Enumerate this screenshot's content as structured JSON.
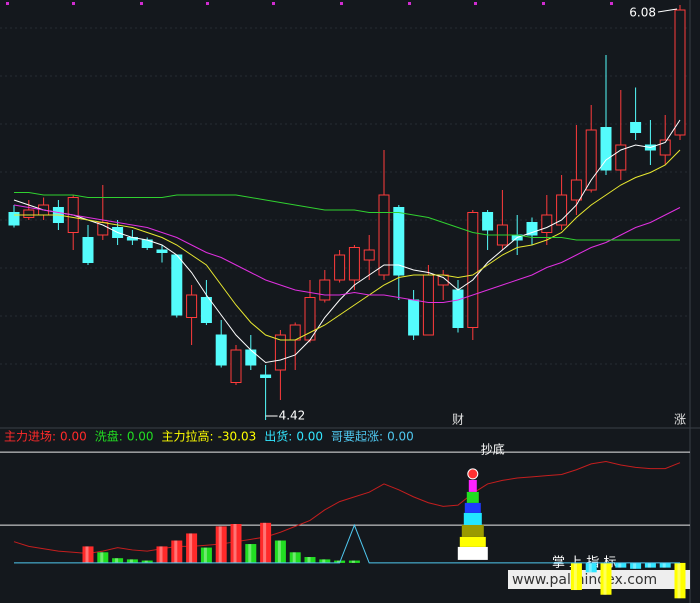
{
  "chart_data": [
    {
      "type": "candlestick",
      "categories": [
        null,
        null,
        null,
        null,
        null,
        null,
        null,
        null,
        null,
        null,
        null,
        null,
        null,
        null,
        null,
        null,
        null,
        null,
        null,
        null,
        null,
        null,
        null,
        null,
        null,
        null,
        null,
        null,
        null,
        null,
        "财",
        null,
        null,
        null,
        null,
        null,
        null,
        null,
        null,
        null,
        null,
        null,
        null,
        null,
        null,
        "涨"
      ],
      "ylim": [
        4.4,
        6.1
      ],
      "up_color": "#ff3b3b",
      "down_color": "#54fcfc",
      "open": [
        5.25,
        5.23,
        5.24,
        5.27,
        5.17,
        5.15,
        5.16,
        5.19,
        5.15,
        5.14,
        5.1,
        5.08,
        4.83,
        4.91,
        4.76,
        4.57,
        4.7,
        4.6,
        4.62,
        4.74,
        4.74,
        4.9,
        4.98,
        4.98,
        5.06,
        5.0,
        5.27,
        4.9,
        4.76,
        4.96,
        4.94,
        4.79,
        5.25,
        5.12,
        5.16,
        5.21,
        5.17,
        5.2,
        5.3,
        5.34,
        5.59,
        5.42,
        5.61,
        5.52,
        5.48,
        5.56
      ],
      "high": [
        5.28,
        5.3,
        5.31,
        5.3,
        5.32,
        5.2,
        5.36,
        5.22,
        5.18,
        5.15,
        5.12,
        5.08,
        4.96,
        4.98,
        4.82,
        4.72,
        4.76,
        4.64,
        4.78,
        4.81,
        4.98,
        5.02,
        5.1,
        5.12,
        5.16,
        5.5,
        5.28,
        4.94,
        5.04,
        5.02,
        4.98,
        5.26,
        5.26,
        5.34,
        5.24,
        5.23,
        5.32,
        5.4,
        5.6,
        5.68,
        5.88,
        5.74,
        5.75,
        5.62,
        5.64,
        6.08
      ],
      "low": [
        5.19,
        5.22,
        5.22,
        5.18,
        5.1,
        5.04,
        5.14,
        5.12,
        5.12,
        5.1,
        5.05,
        4.83,
        4.72,
        4.8,
        4.63,
        4.56,
        4.62,
        4.42,
        4.5,
        4.62,
        4.73,
        4.89,
        4.97,
        4.94,
        4.98,
        4.98,
        4.9,
        4.74,
        4.76,
        4.9,
        4.77,
        4.74,
        5.1,
        5.1,
        5.08,
        5.12,
        5.12,
        5.18,
        5.24,
        5.33,
        5.4,
        5.38,
        5.54,
        5.44,
        5.44,
        5.54
      ],
      "close": [
        5.2,
        5.26,
        5.28,
        5.21,
        5.31,
        5.05,
        5.21,
        5.15,
        5.14,
        5.11,
        5.09,
        4.84,
        4.92,
        4.81,
        4.64,
        4.7,
        4.64,
        4.59,
        4.76,
        4.8,
        4.91,
        4.98,
        5.08,
        5.11,
        5.1,
        5.32,
        5.0,
        4.76,
        5.0,
        5.0,
        4.79,
        5.25,
        5.18,
        5.2,
        5.14,
        5.16,
        5.24,
        5.32,
        5.38,
        5.58,
        5.42,
        5.52,
        5.57,
        5.5,
        5.54,
        6.06
      ],
      "moving_averages": [
        {
          "color": "#ffffff",
          "values": [
            5.3,
            5.28,
            5.26,
            5.25,
            5.24,
            5.22,
            5.2,
            5.17,
            5.15,
            5.14,
            5.12,
            5.08,
            5.01,
            4.92,
            4.84,
            4.76,
            4.7,
            4.65,
            4.66,
            4.68,
            4.74,
            4.83,
            4.9,
            4.96,
            5.0,
            5.04,
            5.04,
            5.02,
            5.01,
            4.99,
            4.94,
            4.98,
            5.05,
            5.1,
            5.15,
            5.17,
            5.19,
            5.22,
            5.28,
            5.38,
            5.46,
            5.5,
            5.52,
            5.51,
            5.53,
            5.62
          ]
        },
        {
          "color": "#e8e830",
          "values": [
            5.24,
            5.24,
            5.24,
            5.24,
            5.23,
            5.22,
            5.21,
            5.2,
            5.19,
            5.17,
            5.15,
            5.12,
            5.08,
            5.04,
            4.96,
            4.88,
            4.81,
            4.76,
            4.74,
            4.74,
            4.77,
            4.8,
            4.84,
            4.88,
            4.92,
            4.96,
            4.99,
            5.0,
            5.0,
            5.0,
            4.99,
            5.0,
            5.04,
            5.08,
            5.11,
            5.12,
            5.14,
            5.17,
            5.23,
            5.28,
            5.32,
            5.36,
            5.39,
            5.41,
            5.44,
            5.5
          ]
        },
        {
          "color": "#e030e0",
          "values": [
            5.28,
            5.27,
            5.26,
            5.25,
            5.24,
            5.23,
            5.22,
            5.21,
            5.2,
            5.19,
            5.17,
            5.15,
            5.12,
            5.09,
            5.07,
            5.04,
            5.01,
            4.98,
            4.96,
            4.94,
            4.93,
            4.92,
            4.92,
            4.93,
            4.92,
            4.92,
            4.91,
            4.9,
            4.89,
            4.89,
            4.9,
            4.92,
            4.94,
            4.96,
            4.98,
            5.0,
            5.03,
            5.05,
            5.08,
            5.11,
            5.13,
            5.16,
            5.19,
            5.21,
            5.24,
            5.27
          ]
        },
        {
          "color": "#30d030",
          "values": [
            5.33,
            5.33,
            5.32,
            5.32,
            5.32,
            5.31,
            5.31,
            5.31,
            5.31,
            5.31,
            5.31,
            5.32,
            5.32,
            5.32,
            5.32,
            5.32,
            5.31,
            5.3,
            5.29,
            5.28,
            5.27,
            5.26,
            5.26,
            5.26,
            5.25,
            5.25,
            5.25,
            5.24,
            5.23,
            5.21,
            5.19,
            5.17,
            5.16,
            5.16,
            5.16,
            5.15,
            5.15,
            5.15,
            5.14,
            5.14,
            5.14,
            5.14,
            5.14,
            5.14,
            5.14,
            5.14
          ]
        }
      ],
      "max_label": 6.08,
      "min_label": 4.42
    },
    {
      "type": "indicator",
      "ylim": [
        -34,
        100
      ],
      "hlines": [
        32,
        94
      ],
      "hline_color": "#e8e8e8",
      "series": [
        {
          "name": "主力进场:",
          "legend_value": "0.00",
          "kind": "bar",
          "color": "#ff2a2a",
          "values": [
            null,
            null,
            null,
            null,
            null,
            14,
            null,
            null,
            null,
            null,
            14,
            19,
            25,
            null,
            31,
            33,
            null,
            34,
            null,
            null,
            null,
            null,
            null,
            null,
            null,
            null,
            null,
            null,
            null,
            null,
            null,
            null,
            null,
            null,
            null,
            null,
            null,
            null,
            null,
            null,
            null,
            null,
            null,
            null,
            null,
            null
          ]
        },
        {
          "name": "洗盘:",
          "legend_value": "0.00",
          "kind": "bar",
          "color": "#22dd22",
          "values": [
            null,
            null,
            null,
            null,
            null,
            null,
            9,
            4,
            3,
            2,
            null,
            null,
            null,
            13,
            null,
            null,
            16,
            null,
            19,
            9,
            5,
            3,
            2,
            2,
            null,
            null,
            null,
            null,
            null,
            null,
            null,
            null,
            null,
            null,
            null,
            null,
            null,
            null,
            null,
            null,
            null,
            null,
            null,
            null,
            null,
            null
          ]
        },
        {
          "name": "主力拉高:",
          "legend_value": "-30.03",
          "kind": "bar",
          "color": "#ffff00",
          "values": [
            null,
            null,
            null,
            null,
            null,
            null,
            null,
            null,
            null,
            null,
            null,
            null,
            null,
            null,
            null,
            null,
            null,
            null,
            null,
            null,
            null,
            null,
            null,
            null,
            null,
            null,
            null,
            null,
            null,
            null,
            null,
            null,
            null,
            null,
            null,
            null,
            null,
            null,
            -23,
            null,
            -27,
            null,
            null,
            null,
            null,
            -30.03
          ]
        },
        {
          "name": "出货:",
          "legend_value": "0.00",
          "kind": "bar",
          "color": "#33e6ff",
          "values": [
            null,
            null,
            null,
            null,
            null,
            null,
            null,
            null,
            null,
            null,
            null,
            null,
            null,
            null,
            null,
            null,
            null,
            null,
            null,
            null,
            null,
            null,
            null,
            null,
            null,
            null,
            null,
            null,
            null,
            null,
            null,
            null,
            null,
            null,
            null,
            null,
            null,
            null,
            null,
            -8,
            null,
            -4,
            -5,
            -4,
            -4,
            null
          ]
        },
        {
          "name": "哥要起涨:",
          "legend_value": "0.00",
          "kind": "line",
          "color": "#4fc8f0",
          "values": [
            0,
            0,
            0,
            0,
            0,
            0,
            0,
            0,
            0,
            0,
            0,
            0,
            0,
            0,
            0,
            0,
            0,
            0,
            0,
            0,
            0,
            0,
            0,
            32,
            0,
            0,
            0,
            0,
            0,
            0,
            0,
            0,
            0,
            0,
            0,
            0,
            0,
            0,
            0,
            0,
            0,
            0,
            0,
            0,
            0,
            0
          ]
        }
      ],
      "line": {
        "color": "#c41e1e",
        "values": [
          18,
          14,
          12,
          10,
          9,
          8,
          10,
          13,
          11,
          10,
          12,
          14,
          14,
          15,
          16,
          18,
          20,
          22,
          26,
          31,
          36,
          45,
          52,
          56,
          60,
          67,
          62,
          56,
          51,
          48,
          49,
          59,
          67,
          70,
          72,
          73,
          74,
          75,
          79,
          84,
          86,
          83,
          81,
          80,
          80,
          85
        ]
      },
      "signals": [
        null,
        null,
        null,
        null,
        null,
        null,
        null,
        null,
        null,
        null,
        null,
        null,
        null,
        null,
        null,
        null,
        null,
        null,
        null,
        null,
        null,
        null,
        null,
        null,
        null,
        null,
        null,
        null,
        null,
        null,
        null,
        "抄底",
        null,
        null,
        null,
        null,
        null,
        null,
        null,
        null,
        null,
        null,
        null,
        null,
        null,
        null
      ]
    }
  ],
  "watermark": {
    "title": "掌 上 指 标",
    "url": "www.palmindex.com"
  }
}
